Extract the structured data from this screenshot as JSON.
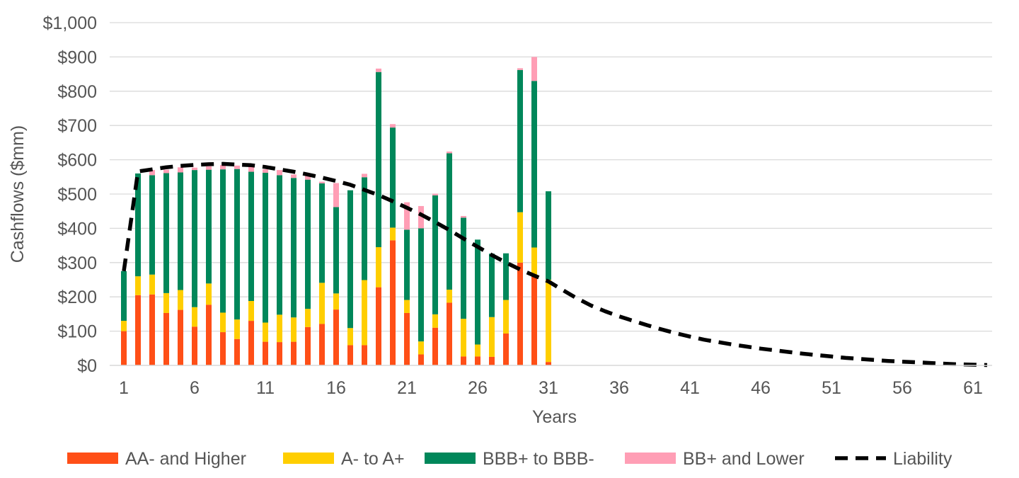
{
  "chart_data": {
    "type": "bar",
    "stacked": true,
    "title": "",
    "xlabel": "Years",
    "ylabel": "Cashflows ($mm)",
    "ylim": [
      0,
      1000
    ],
    "xlim": [
      1,
      62
    ],
    "y_ticks": [
      "$0",
      "$100",
      "$200",
      "$300",
      "$400",
      "$500",
      "$600",
      "$700",
      "$800",
      "$900",
      "$1,000"
    ],
    "y_tick_values": [
      0,
      100,
      200,
      300,
      400,
      500,
      600,
      700,
      800,
      900,
      1000
    ],
    "x_ticks": [
      "1",
      "6",
      "11",
      "16",
      "21",
      "26",
      "31",
      "36",
      "41",
      "46",
      "51",
      "56",
      "61"
    ],
    "x_tick_values": [
      1,
      6,
      11,
      16,
      21,
      26,
      31,
      36,
      41,
      46,
      51,
      56,
      61
    ],
    "grid": "horizontal",
    "legend_position": "bottom",
    "bar_years": [
      1,
      2,
      3,
      4,
      5,
      6,
      7,
      8,
      9,
      10,
      11,
      12,
      13,
      14,
      15,
      16,
      17,
      18,
      19,
      20,
      21,
      22,
      23,
      24,
      25,
      26,
      27,
      28,
      29,
      30,
      31
    ],
    "series": [
      {
        "name": "AA- and Higher",
        "color": "#ff4f17",
        "values": [
          100,
          205,
          207,
          153,
          162,
          113,
          177,
          97,
          77,
          130,
          69,
          68,
          69,
          112,
          121,
          163,
          59,
          59,
          228,
          365,
          153,
          32,
          110,
          183,
          26,
          26,
          25,
          93,
          300,
          262,
          10
        ]
      },
      {
        "name": "A- to A+",
        "color": "#ffce00",
        "values": [
          30,
          55,
          58,
          58,
          58,
          57,
          62,
          57,
          57,
          58,
          56,
          80,
          71,
          53,
          120,
          47,
          50,
          190,
          117,
          37,
          38,
          38,
          39,
          38,
          110,
          35,
          116,
          98,
          147,
          82,
          240
        ]
      },
      {
        "name": "BBB+ to BBB-",
        "color": "#00875a",
        "values": [
          145,
          300,
          290,
          350,
          343,
          400,
          332,
          418,
          439,
          377,
          437,
          407,
          407,
          377,
          290,
          252,
          402,
          300,
          511,
          292,
          205,
          330,
          347,
          398,
          295,
          306,
          185,
          136,
          415,
          486,
          258
        ]
      },
      {
        "name": "BB+ and Lower",
        "color": "#ff9eb5",
        "values": [
          0,
          0,
          15,
          10,
          15,
          7,
          10,
          13,
          10,
          15,
          10,
          15,
          10,
          15,
          5,
          70,
          0,
          10,
          10,
          10,
          80,
          65,
          5,
          5,
          5,
          0,
          0,
          0,
          5,
          70,
          0
        ]
      }
    ],
    "liability": {
      "name": "Liability",
      "color": "#000000",
      "x": [
        1,
        2,
        3,
        4,
        5,
        6,
        7,
        8,
        9,
        10,
        11,
        12,
        13,
        14,
        15,
        16,
        17,
        18,
        19,
        20,
        21,
        22,
        23,
        24,
        25,
        26,
        27,
        28,
        29,
        30,
        31,
        32,
        33,
        34,
        35,
        36,
        37,
        38,
        39,
        40,
        41,
        42,
        43,
        44,
        45,
        46,
        47,
        48,
        49,
        50,
        51,
        52,
        53,
        54,
        55,
        56,
        57,
        58,
        59,
        60,
        61,
        62
      ],
      "y": [
        275,
        566,
        572,
        578,
        582,
        585,
        587,
        588,
        586,
        584,
        579,
        572,
        565,
        557,
        548,
        538,
        527,
        512,
        497,
        479,
        460,
        440,
        418,
        395,
        370,
        346,
        322,
        300,
        280,
        262,
        245,
        220,
        196,
        175,
        158,
        143,
        130,
        117,
        105,
        94,
        84,
        75,
        68,
        61,
        55,
        49,
        44,
        39,
        34,
        30,
        26,
        22,
        19,
        16,
        13,
        11,
        9,
        7,
        5,
        3,
        2,
        1
      ]
    }
  }
}
